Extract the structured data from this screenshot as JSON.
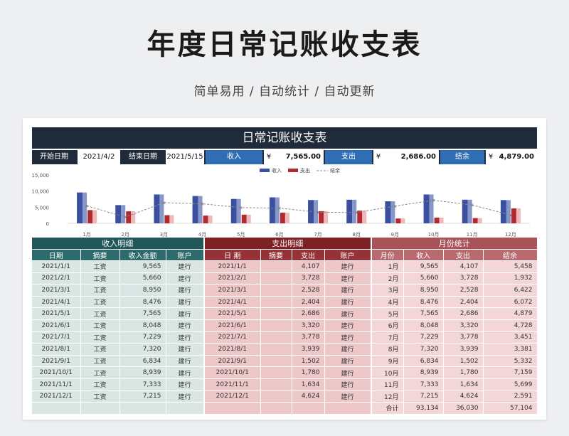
{
  "page": {
    "title": "年度日常记账收支表",
    "subtitle": "简单易用 / 自动统计 / 自动更新"
  },
  "sheet": {
    "title": "日常记账收支表",
    "start_label": "开始日期",
    "start_value": "2021/4/2",
    "end_label": "结束日期",
    "end_value": "2021/5/15",
    "income_label": "收入",
    "income_currency": "¥",
    "income_value": "7,565.00",
    "expense_label": "支出",
    "expense_currency": "¥",
    "expense_value": "2,686.00",
    "balance_label": "结余",
    "balance_currency": "¥",
    "balance_value": "4,879.00"
  },
  "colors": {
    "income": "#3a4f9e",
    "expense": "#b02a2e",
    "balance": "#8a8a8a",
    "header_dark": "#1f2a3a",
    "accent_blue": "#2f6db5"
  },
  "chart_data": {
    "type": "bar",
    "categories": [
      "1月",
      "2月",
      "3月",
      "4月",
      "5月",
      "6月",
      "7月",
      "8月",
      "9月",
      "10月",
      "11月",
      "12月"
    ],
    "series": [
      {
        "name": "收入",
        "type": "bar",
        "values": [
          9565,
          5660,
          8950,
          8476,
          7565,
          8048,
          7229,
          7320,
          6834,
          8939,
          7333,
          7215
        ]
      },
      {
        "name": "支出",
        "type": "bar",
        "values": [
          4107,
          3728,
          2528,
          2404,
          2686,
          3320,
          3778,
          3939,
          1502,
          1780,
          1634,
          4624
        ]
      },
      {
        "name": "结余",
        "type": "line",
        "values": [
          5458,
          1932,
          6422,
          6072,
          4879,
          4728,
          3451,
          3381,
          5332,
          7159,
          5699,
          2591
        ]
      }
    ],
    "y_ticks": [
      "15,000",
      "10,000",
      "5,000",
      "0"
    ],
    "ylim": [
      0,
      15000
    ],
    "legend_position": "top-center",
    "grid": false
  },
  "income_table": {
    "title": "收入明细",
    "headers": [
      "日期",
      "摘要",
      "收入金额",
      "账户"
    ],
    "rows": [
      [
        "2021/1/1",
        "工资",
        "9,565",
        "建行"
      ],
      [
        "2021/2/1",
        "工资",
        "5,660",
        "建行"
      ],
      [
        "2021/3/1",
        "工资",
        "8,950",
        "建行"
      ],
      [
        "2021/4/1",
        "工资",
        "8,476",
        "建行"
      ],
      [
        "2021/5/1",
        "工资",
        "7,565",
        "建行"
      ],
      [
        "2021/6/1",
        "工资",
        "8,048",
        "建行"
      ],
      [
        "2021/7/1",
        "工资",
        "7,229",
        "建行"
      ],
      [
        "2021/8/1",
        "工资",
        "7,320",
        "建行"
      ],
      [
        "2021/9/1",
        "工资",
        "6,834",
        "建行"
      ],
      [
        "2021/10/1",
        "工资",
        "8,939",
        "建行"
      ],
      [
        "2021/11/1",
        "工资",
        "7,333",
        "建行"
      ],
      [
        "2021/12/1",
        "工资",
        "7,215",
        "建行"
      ],
      [
        "",
        "",
        "",
        ""
      ]
    ]
  },
  "expense_table": {
    "title": "支出明细",
    "headers": [
      "日 期",
      "摘要",
      "支出",
      "账户"
    ],
    "rows": [
      [
        "2021/1/1",
        "",
        "4,107",
        "建行"
      ],
      [
        "2021/2/1",
        "",
        "3,728",
        "建行"
      ],
      [
        "2021/3/1",
        "",
        "2,528",
        "建行"
      ],
      [
        "2021/4/1",
        "",
        "2,404",
        "建行"
      ],
      [
        "2021/5/1",
        "",
        "2,686",
        "建行"
      ],
      [
        "2021/6/1",
        "",
        "3,320",
        "建行"
      ],
      [
        "2021/7/1",
        "",
        "3,778",
        "建行"
      ],
      [
        "2021/8/1",
        "",
        "3,939",
        "建行"
      ],
      [
        "2021/9/1",
        "",
        "1,502",
        "建行"
      ],
      [
        "2021/10/1",
        "",
        "1,780",
        "建行"
      ],
      [
        "2021/11/1",
        "",
        "1,634",
        "建行"
      ],
      [
        "2021/12/1",
        "",
        "4,624",
        "建行"
      ],
      [
        "",
        "",
        "",
        ""
      ]
    ]
  },
  "monthly_table": {
    "title": "月份统计",
    "headers": [
      "月份",
      "收入",
      "支出",
      "结余"
    ],
    "rows": [
      [
        "1月",
        "9,565",
        "4,107",
        "5,458"
      ],
      [
        "2月",
        "5,660",
        "3,728",
        "1,932"
      ],
      [
        "3月",
        "8,950",
        "2,528",
        "6,422"
      ],
      [
        "4月",
        "8,476",
        "2,404",
        "6,072"
      ],
      [
        "5月",
        "7,565",
        "2,686",
        "4,879"
      ],
      [
        "6月",
        "8,048",
        "3,320",
        "4,728"
      ],
      [
        "7月",
        "7,229",
        "3,778",
        "3,451"
      ],
      [
        "8月",
        "7,320",
        "3,939",
        "3,381"
      ],
      [
        "9月",
        "6,834",
        "1,502",
        "5,332"
      ],
      [
        "10月",
        "8,939",
        "1,780",
        "7,159"
      ],
      [
        "11月",
        "7,333",
        "1,634",
        "5,699"
      ],
      [
        "12月",
        "7,215",
        "4,624",
        "2,591"
      ],
      [
        "合计",
        "93,134",
        "36,030",
        "57,104"
      ]
    ]
  }
}
